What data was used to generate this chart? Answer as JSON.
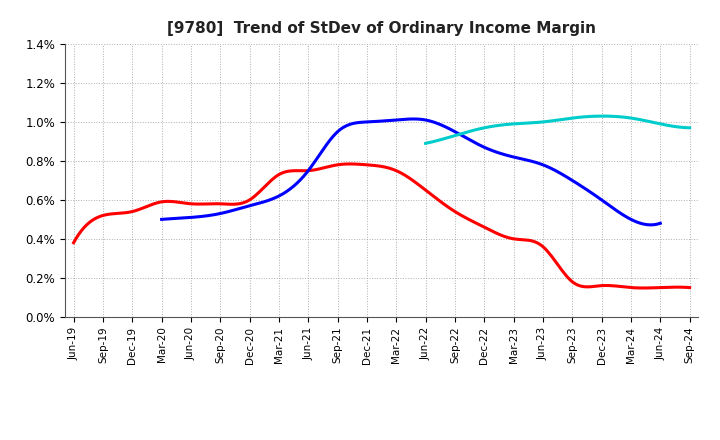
{
  "title": "[9780]  Trend of StDev of Ordinary Income Margin",
  "x_labels": [
    "Jun-19",
    "Sep-19",
    "Dec-19",
    "Mar-20",
    "Jun-20",
    "Sep-20",
    "Dec-20",
    "Mar-21",
    "Jun-21",
    "Sep-21",
    "Dec-21",
    "Mar-22",
    "Jun-22",
    "Sep-22",
    "Dec-22",
    "Mar-23",
    "Jun-23",
    "Sep-23",
    "Dec-23",
    "Mar-24",
    "Jun-24",
    "Sep-24"
  ],
  "series": {
    "3 Years": {
      "color": "#FF0000",
      "values": [
        0.0038,
        0.0052,
        0.0054,
        0.0059,
        0.0058,
        0.0058,
        0.006,
        0.0073,
        0.0075,
        0.0078,
        0.0078,
        0.0075,
        0.0065,
        0.0054,
        0.0046,
        0.004,
        0.0036,
        0.0018,
        0.0016,
        0.0015,
        0.0015,
        0.0015
      ]
    },
    "5 Years": {
      "color": "#0000FF",
      "values": [
        null,
        null,
        null,
        0.005,
        0.0051,
        0.0053,
        0.0057,
        0.0062,
        0.0075,
        0.0095,
        0.01,
        0.0101,
        0.0101,
        0.0095,
        0.0087,
        0.0082,
        0.0078,
        0.007,
        0.006,
        0.005,
        0.0048,
        null
      ]
    },
    "7 Years": {
      "color": "#00CCCC",
      "values": [
        null,
        null,
        null,
        null,
        null,
        null,
        null,
        null,
        null,
        null,
        null,
        null,
        0.0089,
        0.0093,
        0.0097,
        0.0099,
        0.01,
        0.0102,
        0.0103,
        0.0102,
        0.0099,
        0.0097
      ]
    },
    "10 Years": {
      "color": "#008000",
      "values": [
        null,
        null,
        null,
        null,
        null,
        null,
        null,
        null,
        null,
        null,
        null,
        null,
        null,
        null,
        null,
        null,
        null,
        null,
        null,
        null,
        null,
        null
      ]
    }
  },
  "ylim": [
    0.0,
    0.014
  ],
  "yticks": [
    0.0,
    0.002,
    0.004,
    0.006,
    0.008,
    0.01,
    0.012,
    0.014
  ],
  "background_color": "#FFFFFF",
  "grid_color": "#999999",
  "line_width": 2.2
}
